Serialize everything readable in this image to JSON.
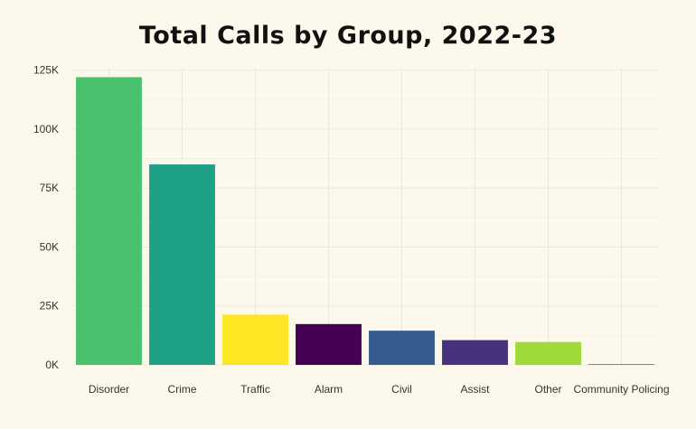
{
  "chart_data": {
    "type": "bar",
    "title": "Total Calls by Group, 2022-23",
    "xlabel": "",
    "ylabel": "",
    "categories": [
      "Disorder",
      "Crime",
      "Traffic",
      "Alarm",
      "Civil",
      "Assist",
      "Other",
      "Community Policing"
    ],
    "values": [
      122000,
      85000,
      21300,
      17300,
      14500,
      10500,
      9700,
      300
    ],
    "colors": [
      "#4ac16d",
      "#1fa187",
      "#fde725",
      "#440154",
      "#365c8d",
      "#46327e",
      "#a0da39",
      "#277f8e"
    ],
    "ylim": [
      0,
      126000
    ],
    "y_ticks": [
      {
        "value": 0,
        "label": "0K"
      },
      {
        "value": 25000,
        "label": "25K"
      },
      {
        "value": 50000,
        "label": "50K"
      },
      {
        "value": 75000,
        "label": "75K"
      },
      {
        "value": 100000,
        "label": "100K"
      },
      {
        "value": 125000,
        "label": "125K"
      }
    ],
    "grid": true,
    "legend": "none"
  }
}
